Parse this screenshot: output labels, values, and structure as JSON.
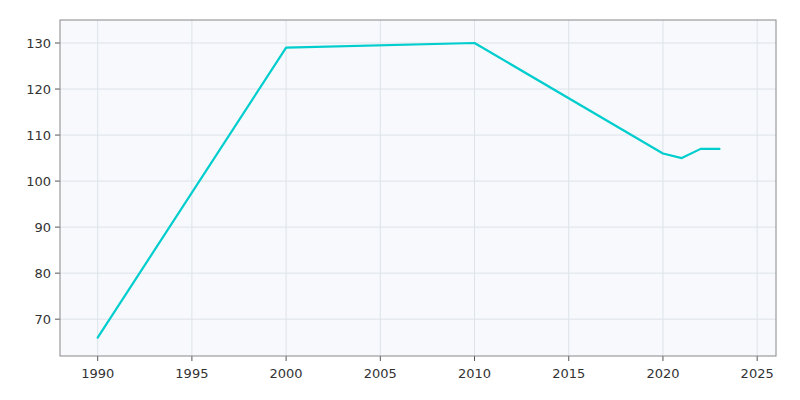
{
  "chart_data": {
    "type": "line",
    "x": [
      1990,
      2000,
      2010,
      2020,
      2021,
      2022,
      2023
    ],
    "values": [
      66,
      129,
      130,
      106,
      105,
      107,
      107
    ],
    "color": "#00CDCD",
    "xlim": [
      1988,
      2026
    ],
    "ylim": [
      62,
      135
    ],
    "xticks": [
      1990,
      1995,
      2000,
      2005,
      2010,
      2015,
      2020,
      2025
    ],
    "yticks": [
      70,
      80,
      90,
      100,
      110,
      120,
      130
    ],
    "grid": true
  }
}
